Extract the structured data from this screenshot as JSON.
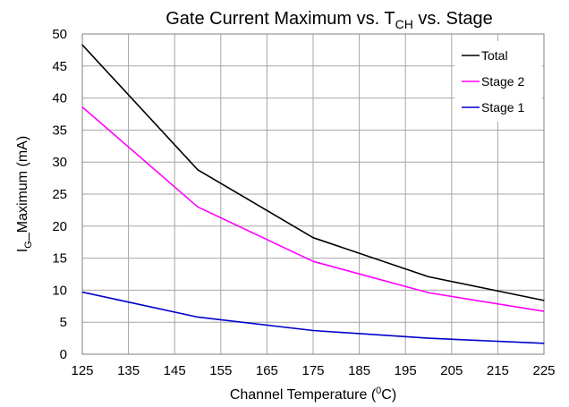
{
  "chart_data": {
    "type": "line",
    "title": {
      "main": "Gate Current Maximum vs. T",
      "sub": "CH",
      "tail": " vs. Stage"
    },
    "xlabel": {
      "main": "Channel Temperature (",
      "sup": "0",
      "tail": "C)"
    },
    "ylabel": {
      "main": "I",
      "sub": "G",
      "tail": "_Maximum (mA)"
    },
    "x": [
      125,
      150,
      175,
      200,
      225
    ],
    "xlim": [
      125,
      225
    ],
    "ylim": [
      0,
      50
    ],
    "x_ticks": [
      125,
      135,
      145,
      155,
      165,
      175,
      185,
      195,
      205,
      215,
      225
    ],
    "y_ticks": [
      0,
      5,
      10,
      15,
      20,
      25,
      30,
      35,
      40,
      45,
      50
    ],
    "grid": true,
    "legend_position": "top-right",
    "series": [
      {
        "name": "Total",
        "color": "#000000",
        "values": [
          48.3,
          28.8,
          18.2,
          12.1,
          8.4
        ]
      },
      {
        "name": "Stage 2",
        "color": "#ff00ff",
        "values": [
          38.6,
          23.0,
          14.5,
          9.6,
          6.7
        ]
      },
      {
        "name": "Stage 1",
        "color": "#0000cc",
        "values": [
          9.7,
          5.8,
          3.7,
          2.5,
          1.7
        ]
      }
    ]
  }
}
